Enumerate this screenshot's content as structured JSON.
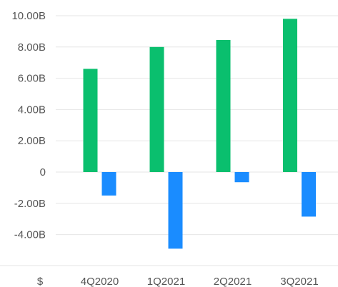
{
  "chart_data": {
    "type": "bar",
    "currency_label": "$",
    "categories": [
      "4Q2020",
      "1Q2021",
      "2Q2021",
      "3Q2021"
    ],
    "series": [
      {
        "color": "#0ABF6E",
        "values": [
          6.6,
          8.0,
          8.45,
          9.8
        ]
      },
      {
        "color": "#1A8CFF",
        "values": [
          -1.5,
          -4.9,
          -0.65,
          -2.85
        ]
      }
    ],
    "y_ticks": [
      {
        "value": 10,
        "label": "10.00B"
      },
      {
        "value": 8,
        "label": "8.00B"
      },
      {
        "value": 6,
        "label": "6.00B"
      },
      {
        "value": 4,
        "label": "4.00B"
      },
      {
        "value": 2,
        "label": "2.00B"
      },
      {
        "value": 0,
        "label": "0"
      },
      {
        "value": -2,
        "label": "-2.00B"
      },
      {
        "value": -4,
        "label": "-4.00B"
      }
    ],
    "ylim": [
      -6,
      10.5
    ],
    "y_unit": "billions USD",
    "grid": true,
    "gridline_color": "#E6E6E6"
  }
}
